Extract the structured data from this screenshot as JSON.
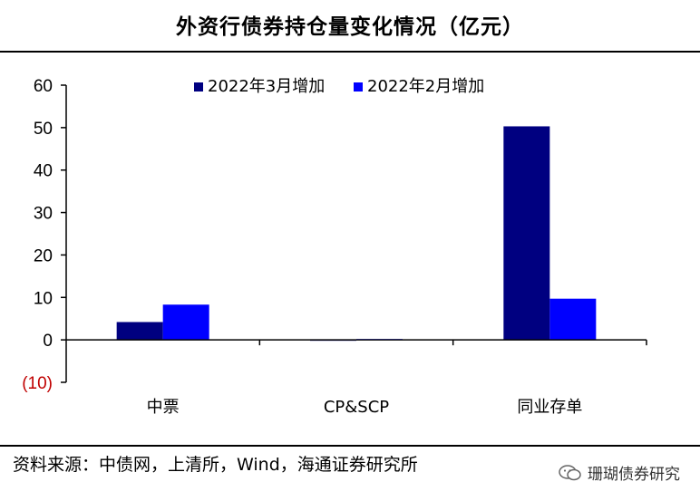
{
  "header": {
    "title": "外资行债券持仓量变化情况（亿元）"
  },
  "footer": {
    "source": "资料来源：中债网，上清所，Wind，海通证券研究所",
    "watermark": "珊瑚债券研究",
    "watermark_icon": "wechat-icon"
  },
  "chart_data": {
    "type": "bar",
    "title": "外资行债券持仓量变化情况（亿元）",
    "xlabel": "",
    "ylabel": "",
    "categories": [
      "中票",
      "CP&SCP",
      "同业存单"
    ],
    "series": [
      {
        "name": "2022年3月增加",
        "values": [
          4.2,
          0,
          50.3
        ],
        "color": "#000080"
      },
      {
        "name": "2022年2月增加",
        "values": [
          8.3,
          0.2,
          9.7
        ],
        "color": "#0000FF"
      }
    ],
    "ylim": [
      -10,
      60
    ],
    "yticks": [
      -10,
      0,
      10,
      20,
      30,
      40,
      50,
      60
    ],
    "ytick_labels": [
      "(10)",
      "0",
      "10",
      "20",
      "30",
      "40",
      "50",
      "60"
    ],
    "negative_tick_color": "#C00000",
    "grid": false,
    "legend": "top-center"
  }
}
